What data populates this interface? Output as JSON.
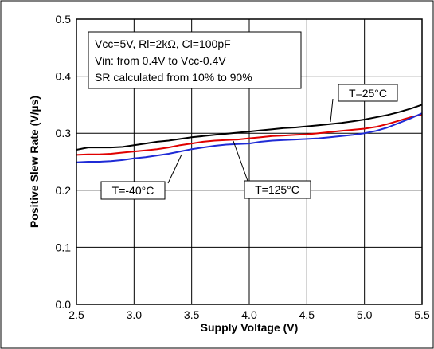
{
  "chart_data": {
    "type": "line",
    "title": "",
    "xlabel": "Supply Voltage (V)",
    "ylabel": "Positive Slew Rate (V/µs)",
    "xlim": [
      2.5,
      5.5
    ],
    "ylim": [
      0.0,
      0.5
    ],
    "xticks": [
      "2.5",
      "3.0",
      "3.5",
      "4.0",
      "4.5",
      "5.0",
      "5.5"
    ],
    "yticks": [
      "0.0",
      "0.1",
      "0.2",
      "0.3",
      "0.4",
      "0.5"
    ],
    "grid": true,
    "conditions_box": [
      "Vcc=5V, Rl=2kΩ, Cl=100pF",
      "Vin: from 0.4V to Vcc-0.4V",
      "SR calculated from 10% to 90%"
    ],
    "series": [
      {
        "name": "T=25°C",
        "color": "#000000",
        "x": [
          2.5,
          2.6,
          2.7,
          2.8,
          2.9,
          3.0,
          3.1,
          3.2,
          3.3,
          3.4,
          3.5,
          3.6,
          3.7,
          3.8,
          3.9,
          4.0,
          4.1,
          4.2,
          4.3,
          4.4,
          4.5,
          4.6,
          4.7,
          4.8,
          4.9,
          5.0,
          5.1,
          5.2,
          5.3,
          5.4,
          5.5
        ],
        "y": [
          0.271,
          0.275,
          0.275,
          0.275,
          0.276,
          0.279,
          0.282,
          0.285,
          0.287,
          0.29,
          0.293,
          0.295,
          0.297,
          0.299,
          0.301,
          0.303,
          0.305,
          0.307,
          0.309,
          0.31,
          0.312,
          0.314,
          0.316,
          0.318,
          0.321,
          0.324,
          0.328,
          0.332,
          0.337,
          0.343,
          0.35
        ]
      },
      {
        "name": "T=125°C",
        "color": "#e00000",
        "x": [
          2.5,
          2.6,
          2.7,
          2.8,
          2.9,
          3.0,
          3.1,
          3.2,
          3.3,
          3.4,
          3.5,
          3.6,
          3.7,
          3.8,
          3.9,
          4.0,
          4.1,
          4.2,
          4.3,
          4.4,
          4.5,
          4.6,
          4.7,
          4.8,
          4.9,
          5.0,
          5.1,
          5.2,
          5.3,
          5.4,
          5.5
        ],
        "y": [
          0.262,
          0.263,
          0.263,
          0.264,
          0.266,
          0.268,
          0.27,
          0.272,
          0.275,
          0.279,
          0.282,
          0.285,
          0.287,
          0.288,
          0.289,
          0.291,
          0.293,
          0.295,
          0.296,
          0.297,
          0.298,
          0.3,
          0.302,
          0.304,
          0.306,
          0.308,
          0.311,
          0.316,
          0.322,
          0.328,
          0.333
        ]
      },
      {
        "name": "T=-40°C",
        "color": "#1f2bd6",
        "x": [
          2.5,
          2.6,
          2.7,
          2.8,
          2.9,
          3.0,
          3.1,
          3.2,
          3.3,
          3.4,
          3.5,
          3.6,
          3.7,
          3.8,
          3.9,
          4.0,
          4.1,
          4.2,
          4.3,
          4.4,
          4.5,
          4.6,
          4.7,
          4.8,
          4.9,
          5.0,
          5.1,
          5.2,
          5.3,
          5.4,
          5.5
        ],
        "y": [
          0.249,
          0.25,
          0.25,
          0.251,
          0.253,
          0.256,
          0.258,
          0.261,
          0.264,
          0.268,
          0.272,
          0.275,
          0.278,
          0.28,
          0.281,
          0.282,
          0.285,
          0.287,
          0.288,
          0.289,
          0.29,
          0.291,
          0.293,
          0.295,
          0.297,
          0.3,
          0.304,
          0.31,
          0.318,
          0.326,
          0.335
        ]
      }
    ],
    "annotations": [
      {
        "text": "T=25°C",
        "series": "T=25°C",
        "x": 4.7,
        "y": 0.316
      },
      {
        "text": "T=125°C",
        "series": "T=125°C",
        "x": 3.84,
        "y": 0.288
      },
      {
        "text": "T=-40°C",
        "series": "T=-40°C",
        "x": 3.4,
        "y": 0.268
      }
    ]
  }
}
